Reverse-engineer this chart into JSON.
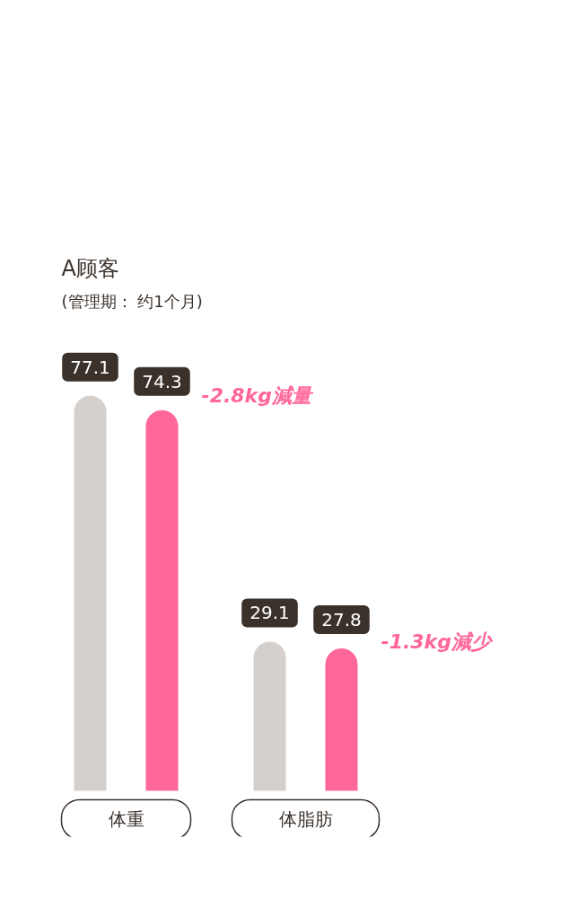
{
  "chart_data": {
    "type": "bar",
    "title": "A顾客",
    "subtitle": "(管理期： 约1个月)",
    "categories": [
      "体重",
      "体脂肪"
    ],
    "series": [
      {
        "color": "#d5d0cc",
        "values": [
          77.1,
          29.1
        ]
      },
      {
        "color": "#ff6699",
        "values": [
          74.3,
          27.8
        ]
      }
    ],
    "data_labels": true,
    "annotations": [
      "-2.8kg減量",
      "-1.3kg減少"
    ]
  }
}
